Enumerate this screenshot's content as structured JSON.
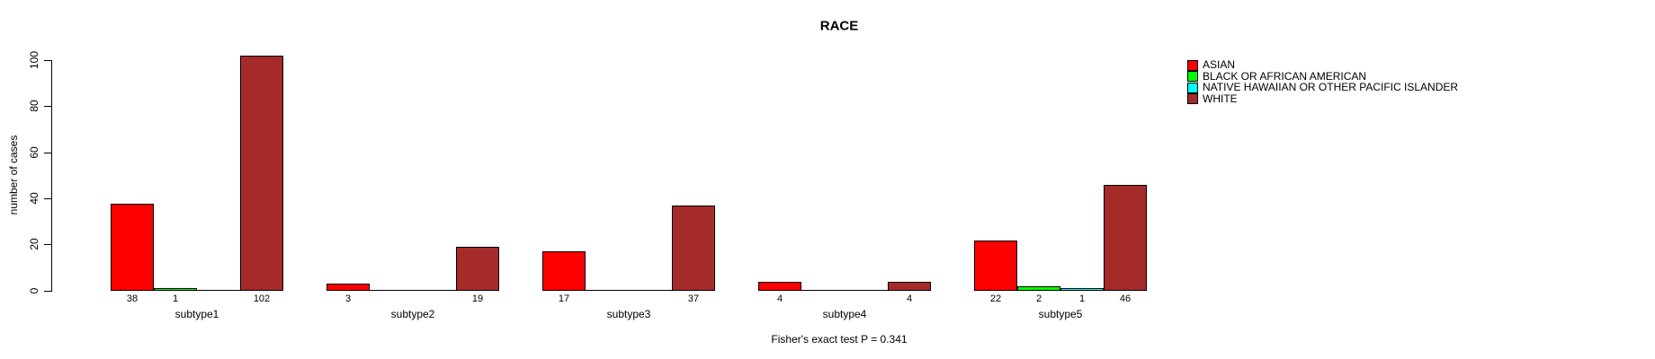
{
  "title": "RACE",
  "y_axis": {
    "label": "number of cases",
    "ticks": [
      0,
      20,
      40,
      60,
      80,
      100
    ]
  },
  "footer": "Fisher's exact test P = 0.341",
  "legend": {
    "items": [
      {
        "label": "ASIAN",
        "color": "#FF0000"
      },
      {
        "label": "BLACK OR AFRICAN AMERICAN",
        "color": "#00FF00"
      },
      {
        "label": "NATIVE HAWAIIAN OR OTHER PACIFIC ISLANDER",
        "color": "#00FFFF"
      },
      {
        "label": "WHITE",
        "color": "#A52A2A"
      }
    ]
  },
  "chart_data": {
    "type": "bar",
    "grouped": true,
    "title": "RACE",
    "xlabel": "",
    "ylabel": "number of cases",
    "ylim": [
      0,
      100
    ],
    "y_ticks": [
      0,
      20,
      40,
      60,
      80,
      100
    ],
    "grid": false,
    "legend_position": "top-right",
    "categories": [
      "subtype1",
      "subtype2",
      "subtype3",
      "subtype4",
      "subtype5"
    ],
    "series": [
      {
        "name": "ASIAN",
        "color": "#FF0000",
        "values": [
          38,
          3,
          17,
          4,
          22
        ]
      },
      {
        "name": "BLACK OR AFRICAN AMERICAN",
        "color": "#00FF00",
        "values": [
          1,
          0,
          0,
          0,
          2
        ]
      },
      {
        "name": "NATIVE HAWAIIAN OR OTHER PACIFIC ISLANDER",
        "color": "#00FFFF",
        "values": [
          0,
          0,
          0,
          0,
          1
        ]
      },
      {
        "name": "WHITE",
        "color": "#A52A2A",
        "values": [
          102,
          19,
          37,
          4,
          46
        ]
      }
    ],
    "bar_value_labels_shown_for_nonzero": true,
    "annotation": "Fisher's exact test P = 0.341"
  }
}
